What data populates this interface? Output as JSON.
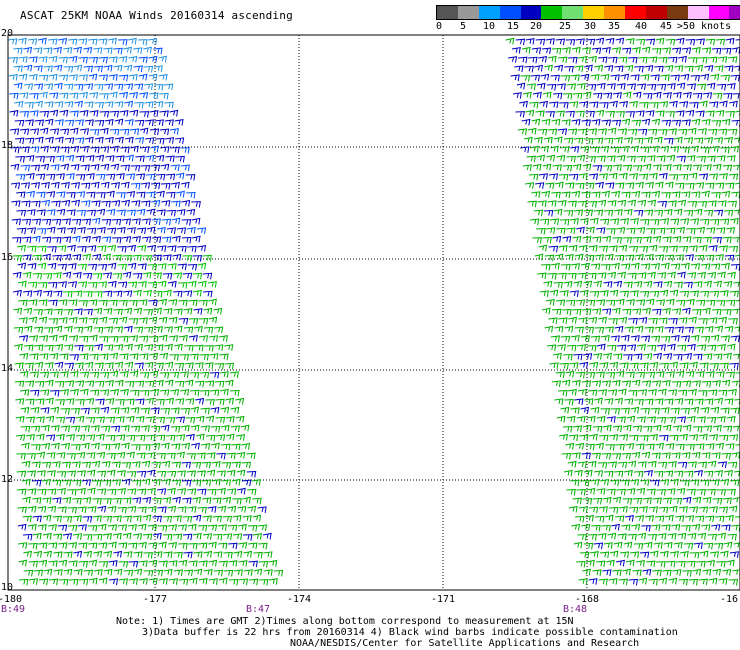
{
  "title": "ASCAT 25KM NOAA Winds 20160314 ascending",
  "legend": {
    "colors": [
      "#555555",
      "#999999",
      "#00a0ff",
      "#0050ff",
      "#0000c0",
      "#00c000",
      "#70e070",
      "#ffd000",
      "#ff9000",
      "#ff0000",
      "#c00000",
      "#7a3a10",
      "#ffc0ff",
      "#ff00ff",
      "#a000c0",
      "#300060"
    ],
    "labels": [
      "0",
      "5",
      "10",
      "15",
      "20",
      "25",
      "30",
      "35",
      "40",
      "45",
      ">50 knots"
    ]
  },
  "latitudes": [
    "20",
    "18",
    "16",
    "14",
    "12",
    "10"
  ],
  "longitudes": [
    "-180",
    "-177",
    "-174",
    "-171",
    "-168",
    "-16"
  ],
  "times": [
    "B:49",
    "B:47",
    "B:48"
  ],
  "notes": {
    "line1": "Note: 1) Times are GMT 2)Times along bottom correspond to measurement at 15N",
    "line2": "3)Data buffer is 22 hrs from 20160314 4) Black wind barbs indicate possible contamination",
    "line3": "NOAA/NESDIS/Center for Satellite Applications and Research"
  }
}
